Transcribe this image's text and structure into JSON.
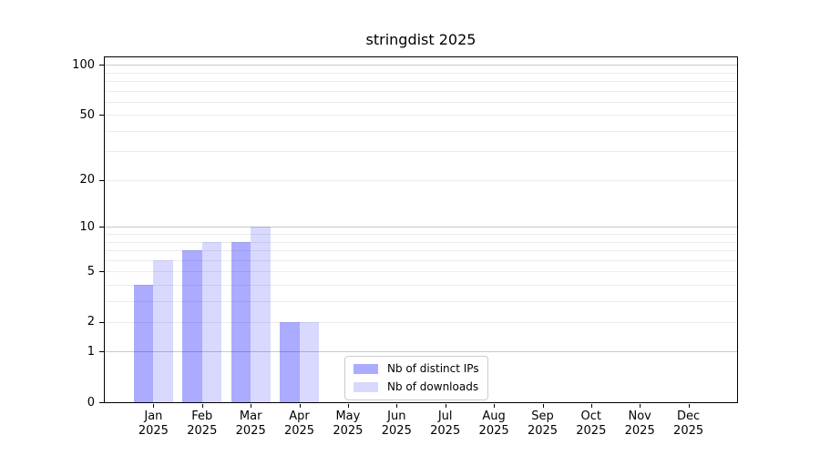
{
  "chart_data": {
    "type": "bar",
    "title": "stringdist 2025",
    "categories": [
      "Jan",
      "Feb",
      "Mar",
      "Apr",
      "May",
      "Jun",
      "Jul",
      "Aug",
      "Sep",
      "Oct",
      "Nov",
      "Dec"
    ],
    "category_year": "2025",
    "series": [
      {
        "name": "Nb of distinct IPs",
        "color": "#0000FF54",
        "values": [
          4,
          7,
          8,
          2,
          0,
          0,
          0,
          0,
          0,
          0,
          0,
          0
        ]
      },
      {
        "name": "Nb of downloads",
        "color": "#0000FF26",
        "values": [
          6,
          8,
          10,
          2,
          0,
          0,
          0,
          0,
          0,
          0,
          0,
          0
        ]
      }
    ],
    "yscale": "log1p",
    "ylim": [
      0,
      111
    ],
    "y_tick_labels": [
      0,
      1,
      2,
      5,
      10,
      20,
      50,
      100
    ],
    "major_gridlines": [
      1,
      10,
      100
    ],
    "minor_gridlines": [
      2,
      3,
      4,
      5,
      6,
      7,
      8,
      9,
      20,
      30,
      40,
      50,
      60,
      70,
      80,
      90
    ],
    "grid": "horizontal",
    "legend_position": "inside-bottom-center"
  },
  "styles": {
    "background": "#ffffff",
    "axis_color": "#000000",
    "text_color": "#000000",
    "major_grid_color": "#c9c9c9",
    "minor_grid_color": "#ebebeb",
    "legend_border_color": "#cccccc"
  }
}
